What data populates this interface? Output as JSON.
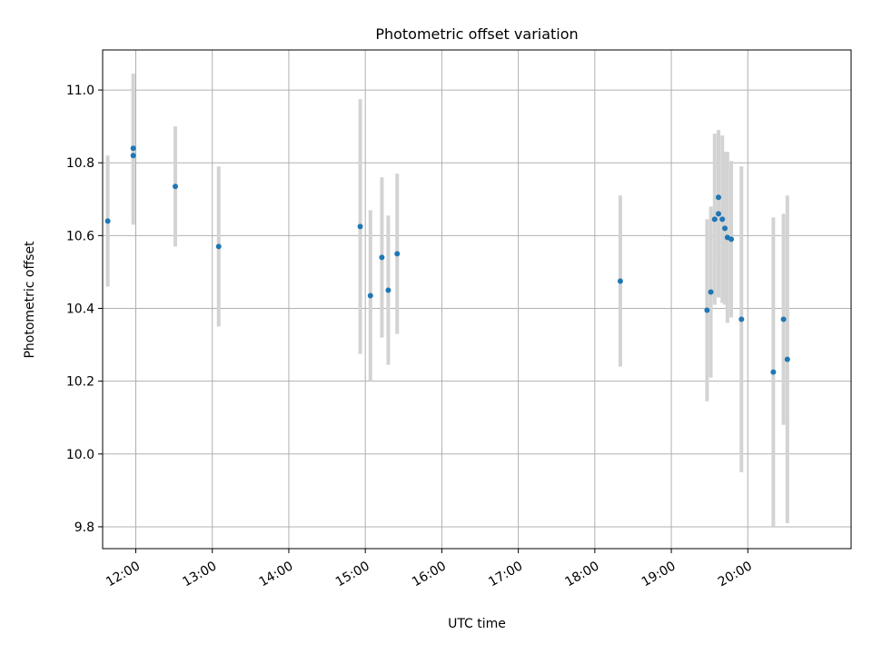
{
  "chart_data": {
    "type": "scatter",
    "title": "Photometric offset variation",
    "xlabel": "UTC time",
    "ylabel": "Photometric offset",
    "xlim": [
      "11:34",
      "21:21"
    ],
    "ylim": [
      9.74,
      11.11
    ],
    "x_ticks": [
      "12:00",
      "13:00",
      "14:00",
      "15:00",
      "16:00",
      "17:00",
      "18:00",
      "19:00",
      "20:00"
    ],
    "y_ticks": [
      9.8,
      10.0,
      10.2,
      10.4,
      10.6,
      10.8,
      11.0
    ],
    "grid": true,
    "colors": {
      "point": "#1f77b4",
      "errorbar": "#d3d3d3",
      "grid": "#b0b0b0"
    },
    "points": [
      {
        "t": "11:38",
        "y": 10.64,
        "yerr": 0.18
      },
      {
        "t": "11:58",
        "y": 10.84,
        "yerr": 0.205
      },
      {
        "t": "11:58",
        "y": 10.82,
        "yerr": 0.19
      },
      {
        "t": "12:31",
        "y": 10.735,
        "yerr": 0.165
      },
      {
        "t": "13:05",
        "y": 10.57,
        "yerr": 0.22
      },
      {
        "t": "14:56",
        "y": 10.625,
        "yerr": 0.35
      },
      {
        "t": "15:04",
        "y": 10.435,
        "yerr": 0.235
      },
      {
        "t": "15:13",
        "y": 10.54,
        "yerr": 0.22
      },
      {
        "t": "15:18",
        "y": 10.45,
        "yerr": 0.205
      },
      {
        "t": "15:25",
        "y": 10.55,
        "yerr": 0.22
      },
      {
        "t": "18:20",
        "y": 10.475,
        "yerr": 0.235
      },
      {
        "t": "19:28",
        "y": 10.395,
        "yerr": 0.25
      },
      {
        "t": "19:31",
        "y": 10.445,
        "yerr": 0.235
      },
      {
        "t": "19:34",
        "y": 10.645,
        "yerr": 0.235
      },
      {
        "t": "19:37",
        "y": 10.705,
        "yerr": 0.18
      },
      {
        "t": "19:37",
        "y": 10.66,
        "yerr": 0.23
      },
      {
        "t": "19:40",
        "y": 10.645,
        "yerr": 0.23
      },
      {
        "t": "19:42",
        "y": 10.62,
        "yerr": 0.21
      },
      {
        "t": "19:44",
        "y": 10.595,
        "yerr": 0.235
      },
      {
        "t": "19:47",
        "y": 10.59,
        "yerr": 0.215
      },
      {
        "t": "19:55",
        "y": 10.37,
        "yerr": 0.42
      },
      {
        "t": "20:20",
        "y": 10.225,
        "yerr": 0.425
      },
      {
        "t": "20:28",
        "y": 10.37,
        "yerr": 0.29
      },
      {
        "t": "20:31",
        "y": 10.26,
        "yerr": 0.45
      }
    ]
  }
}
